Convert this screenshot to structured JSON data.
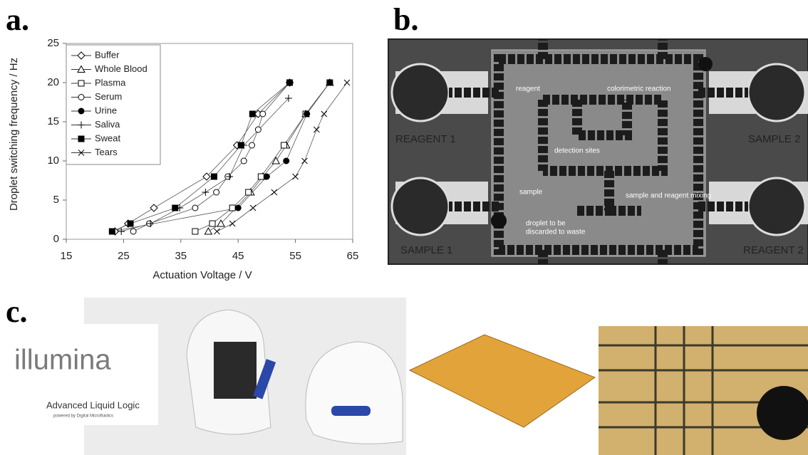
{
  "panels": {
    "a": "a.",
    "b": "b.",
    "c": "c."
  },
  "chart_data": {
    "type": "line",
    "xlabel": "Actuation Voltage / V",
    "ylabel": "Droplet switching frequency / Hz",
    "xlim": [
      15,
      65
    ],
    "xticks": [
      15,
      25,
      35,
      45,
      55,
      65
    ],
    "ylim": [
      0,
      25
    ],
    "yticks": [
      0,
      5,
      10,
      15,
      20,
      25
    ],
    "series": [
      {
        "name": "Buffer",
        "marker": "diamond",
        "filled": false,
        "x": [
          23.5,
          25.8,
          30.3,
          39.5,
          44.8,
          48.5,
          54
        ],
        "values": [
          1,
          2,
          4,
          8,
          12,
          16,
          20
        ]
      },
      {
        "name": "Whole Blood",
        "marker": "triangle",
        "filled": false,
        "x": [
          39.8,
          42,
          47.2,
          49.3,
          51.6,
          53.4,
          56.8,
          61
        ],
        "values": [
          1,
          2,
          6,
          8,
          10,
          12,
          16,
          20
        ]
      },
      {
        "name": "Plasma",
        "marker": "square",
        "filled": false,
        "x": [
          37.5,
          40.5,
          44,
          46.8,
          49,
          53,
          56.8,
          61
        ],
        "values": [
          1,
          2,
          4,
          6,
          8,
          12,
          16,
          20
        ]
      },
      {
        "name": "Serum",
        "marker": "circle",
        "filled": false,
        "x": [
          26.7,
          29.5,
          37.5,
          41.2,
          43.2,
          46,
          47.4,
          48.5,
          49.3,
          54
        ],
        "values": [
          1,
          2,
          4,
          6,
          8,
          10,
          12,
          14,
          16,
          20
        ]
      },
      {
        "name": "Urine",
        "marker": "circle",
        "filled": true,
        "x": [
          23,
          45,
          50,
          53.4,
          57,
          61
        ],
        "values": [
          1,
          4,
          8,
          10,
          16,
          20
        ]
      },
      {
        "name": "Saliva",
        "marker": "plus",
        "filled": false,
        "x": [
          24.6,
          29.7,
          34.8,
          39.3,
          43.5,
          46,
          53.8
        ],
        "values": [
          1,
          2,
          4,
          6,
          8,
          12,
          18
        ]
      },
      {
        "name": "Sweat",
        "marker": "square",
        "filled": true,
        "x": [
          23,
          26.2,
          34,
          40.8,
          45.5,
          47.5,
          54
        ],
        "values": [
          1,
          2,
          4,
          8,
          12,
          16,
          20
        ]
      },
      {
        "name": "Tears",
        "marker": "x",
        "filled": false,
        "x": [
          41.3,
          44,
          47.6,
          51.3,
          55,
          56.6,
          58.7,
          60,
          64
        ],
        "values": [
          1,
          2,
          4,
          6,
          8,
          10,
          14,
          16,
          20
        ]
      }
    ]
  },
  "photo_b": {
    "ports": [
      "REAGENT 1",
      "SAMPLE 2",
      "SAMPLE 1",
      "REAGENT 2"
    ],
    "annotations": [
      "reagent",
      "colorimetric reaction",
      "detection sites",
      "sample",
      "sample and reagent mixing",
      "droplet to be",
      "discarded to waste"
    ]
  },
  "photo_c": {
    "logo1": "illumina",
    "logo2": "Advanced Liquid Logic",
    "logo2_sub": "powered by Digital Microfluidics"
  }
}
